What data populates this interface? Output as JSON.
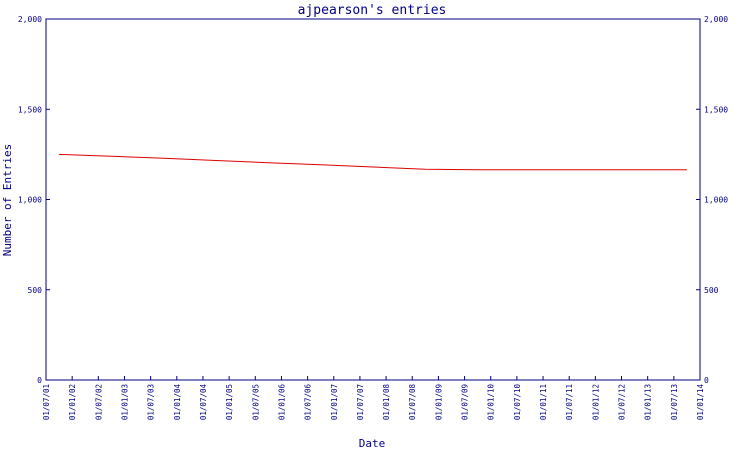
{
  "chart_data": {
    "type": "line",
    "title": "ajpearson's entries",
    "xlabel": "Date",
    "ylabel": "Number of Entries",
    "ylim": [
      0,
      2000
    ],
    "yticks": [
      0,
      500,
      1000,
      1500,
      2000
    ],
    "ytick_labels": [
      "0",
      "500",
      "1,000",
      "1,500",
      "2,000"
    ],
    "xtick_labels": [
      "01/07/01",
      "01/01/02",
      "01/07/02",
      "01/01/03",
      "01/07/03",
      "01/01/04",
      "01/07/04",
      "01/01/05",
      "01/07/05",
      "01/01/06",
      "01/07/06",
      "01/01/07",
      "01/07/07",
      "01/01/08",
      "01/07/08",
      "01/01/09",
      "01/07/09",
      "01/01/10",
      "01/07/10",
      "01/01/11",
      "01/07/11",
      "01/01/12",
      "01/07/12",
      "01/01/13",
      "01/07/13",
      "01/01/14"
    ],
    "series": [
      {
        "color": "#dd0000",
        "x": [
          "2001-10",
          "2002-10",
          "2003-10",
          "2004-10",
          "2005-10",
          "2006-10",
          "2007-10",
          "2008-10",
          "2009-10",
          "2010-10",
          "2011-10",
          "2012-10",
          "2013-10"
        ],
        "values": [
          1250,
          1240,
          1228,
          1216,
          1204,
          1192,
          1180,
          1168,
          1165,
          1165,
          1165,
          1165,
          1165
        ]
      }
    ],
    "colors": {
      "axis": "#000080",
      "text": "#000080",
      "line": "#dd0000"
    }
  }
}
